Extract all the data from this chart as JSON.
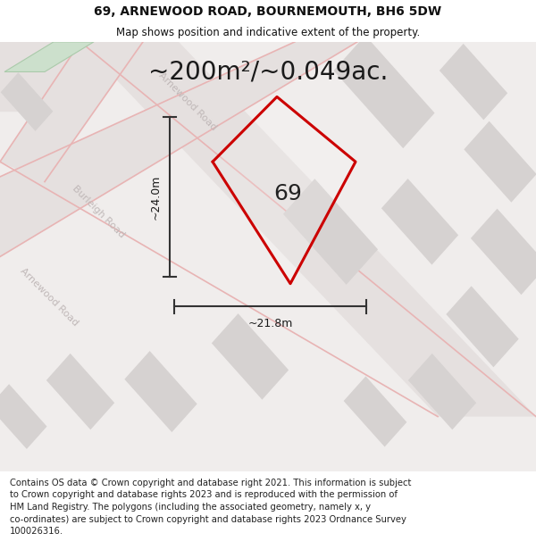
{
  "title_line1": "69, ARNEWOOD ROAD, BOURNEMOUTH, BH6 5DW",
  "title_line2": "Map shows position and indicative extent of the property.",
  "area_text": "~200m²/~0.049ac.",
  "label_69": "69",
  "dim_height": "~24.0m",
  "dim_width": "~21.8m",
  "footer_text": "Contains OS data © Crown copyright and database right 2021. This information is subject to Crown copyright and database rights 2023 and is reproduced with the permission of HM Land Registry. The polygons (including the associated geometry, namely x, y co-ordinates) are subject to Crown copyright and database rights 2023 Ordnance Survey 100026316.",
  "footer_wrapped": "Contains OS data © Crown copyright and database right 2021. This information is subject\nto Crown copyright and database rights 2023 and is reproduced with the permission of\nHM Land Registry. The polygons (including the associated geometry, namely x, y\nco-ordinates) are subject to Crown copyright and database rights 2023 Ordnance Survey\n100026316.",
  "map_bg": "#f0edec",
  "road_fill": "#e5e0df",
  "road_pink": "#e8b4b4",
  "building_gray": "#d6d2d1",
  "building_green": "#cce0cc",
  "property_color": "#cc0000",
  "dim_line_color": "#333333",
  "road_label_color": "#c0b8b8",
  "title_fontsize": 10,
  "subtitle_fontsize": 8.5,
  "area_fontsize": 20,
  "label_fontsize": 18,
  "dim_fontsize": 9,
  "road_fontsize": 8,
  "footer_fontsize": 7.2
}
